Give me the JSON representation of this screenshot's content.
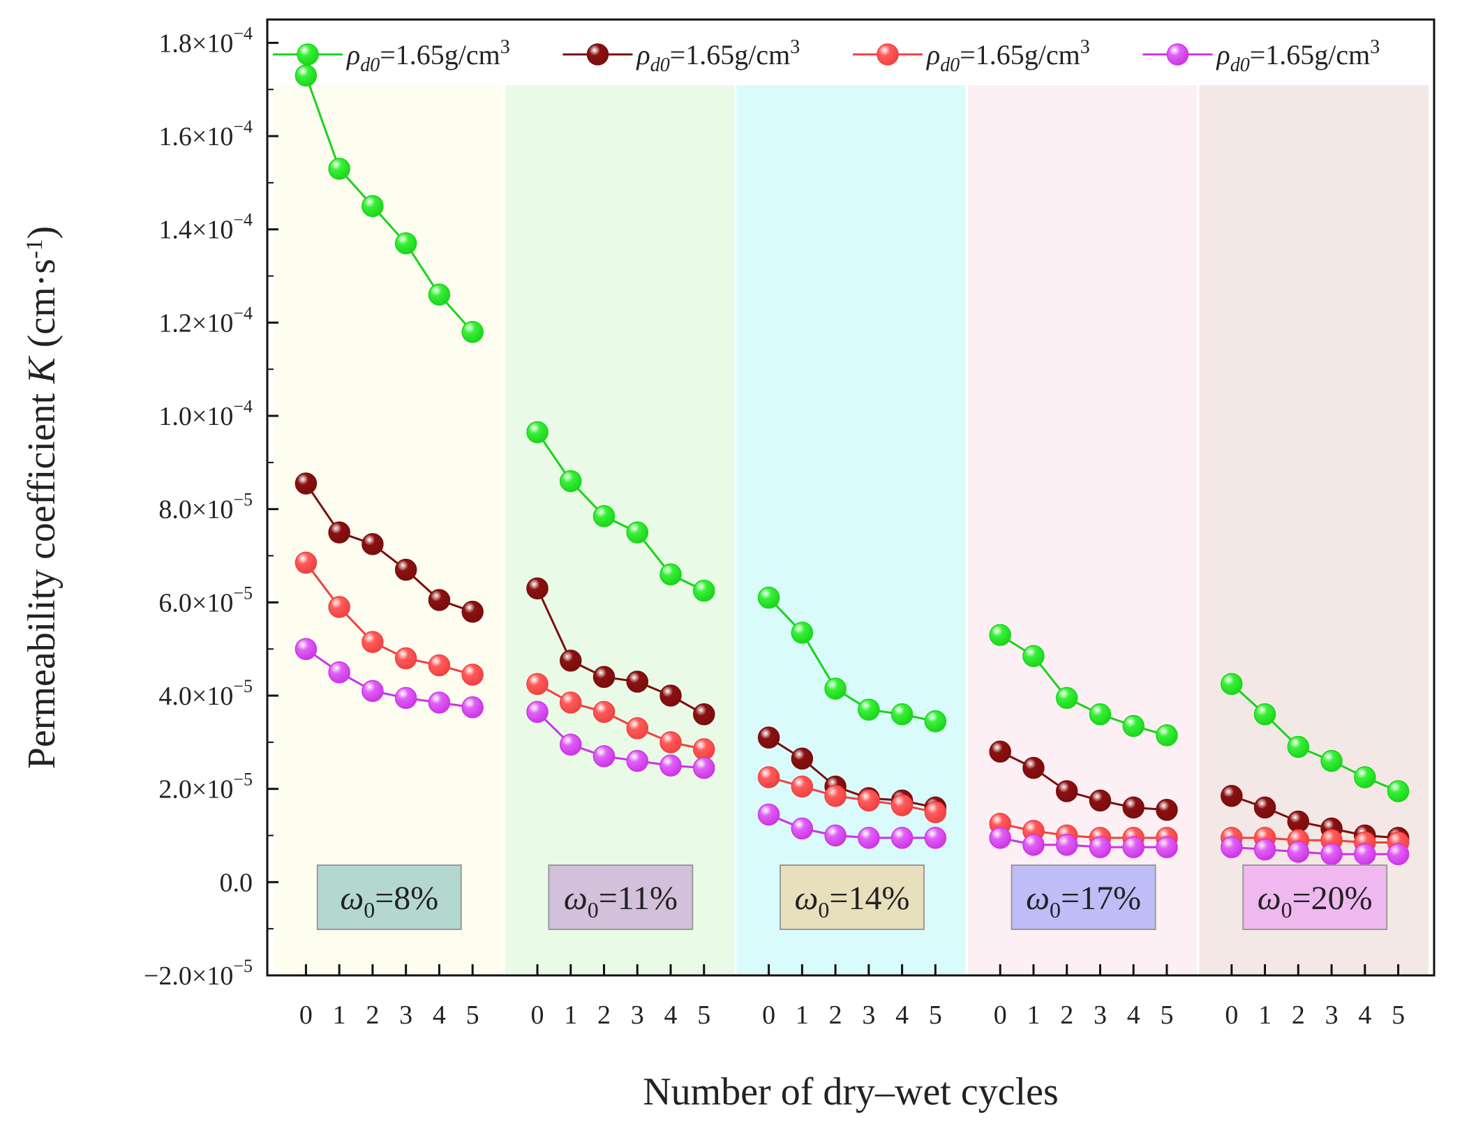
{
  "chart_data": {
    "type": "line",
    "xlabel": "Number of dry–wet cycles",
    "ylabel_parts": {
      "pre": "Permeability coefficient ",
      "italic": "K",
      "unit": " (cm·s",
      "unit_exp": "-1",
      "close": ")"
    },
    "ylim": [
      -2e-05,
      0.000185
    ],
    "yticks": [
      {
        "value": -2e-05,
        "mantissa": "−2.0×10",
        "exp": "−5"
      },
      {
        "value": 0,
        "mantissa": "0.0",
        "exp": ""
      },
      {
        "value": 2e-05,
        "mantissa": "2.0×10",
        "exp": "−5"
      },
      {
        "value": 4e-05,
        "mantissa": "4.0×10",
        "exp": "−5"
      },
      {
        "value": 6e-05,
        "mantissa": "6.0×10",
        "exp": "−5"
      },
      {
        "value": 8e-05,
        "mantissa": "8.0×10",
        "exp": "−5"
      },
      {
        "value": 0.0001,
        "mantissa": "1.0×10",
        "exp": "−4"
      },
      {
        "value": 0.00012,
        "mantissa": "1.2×10",
        "exp": "−4"
      },
      {
        "value": 0.00014,
        "mantissa": "1.4×10",
        "exp": "−4"
      },
      {
        "value": 0.00016,
        "mantissa": "1.6×10",
        "exp": "−4"
      },
      {
        "value": 0.00018,
        "mantissa": "1.8×10",
        "exp": "−4"
      }
    ],
    "cycles": [
      "0",
      "1",
      "2",
      "3",
      "4",
      "5"
    ],
    "groups": [
      {
        "label_sym": "ω",
        "label_sub": "0",
        "label_val": "=8%",
        "bg": "#fdfdf0",
        "box": "#b4d8cf"
      },
      {
        "label_sym": "ω",
        "label_sub": "0",
        "label_val": "=11%",
        "bg": "#e9fae6",
        "box": "#d3c0db"
      },
      {
        "label_sym": "ω",
        "label_sub": "0",
        "label_val": "=14%",
        "bg": "#d9fbfb",
        "box": "#e8dfbc"
      },
      {
        "label_sym": "ω",
        "label_sub": "0",
        "label_val": "=17%",
        "bg": "#fdf0f5",
        "box": "#bfbdf7"
      },
      {
        "label_sym": "ω",
        "label_sub": "0",
        "label_val": "=20%",
        "bg": "#f4e8e6",
        "box": "#efb9ef"
      }
    ],
    "series": [
      {
        "name_sym": "ρ",
        "name_sub": "d0",
        "name_val": "=1.65g/cm",
        "name_exp": "3",
        "color": "#19d419",
        "fill": "#37f037",
        "values": [
          [
            0.000173,
            0.000153,
            0.000145,
            0.000137,
            0.000126,
            0.000118
          ],
          [
            9.65e-05,
            8.6e-05,
            7.85e-05,
            7.5e-05,
            6.6e-05,
            6.25e-05
          ],
          [
            6.1e-05,
            5.35e-05,
            4.15e-05,
            3.7e-05,
            3.6e-05,
            3.45e-05
          ],
          [
            5.3e-05,
            4.85e-05,
            3.95e-05,
            3.6e-05,
            3.35e-05,
            3.15e-05
          ],
          [
            4.25e-05,
            3.6e-05,
            2.9e-05,
            2.6e-05,
            2.25e-05,
            1.95e-05
          ]
        ]
      },
      {
        "name_sym": "ρ",
        "name_sub": "d0",
        "name_val": "=1.65g/cm",
        "name_exp": "3",
        "color": "#7a0d0d",
        "fill": "#8a1010",
        "values": [
          [
            8.55e-05,
            7.5e-05,
            7.25e-05,
            6.7e-05,
            6.05e-05,
            5.8e-05
          ],
          [
            6.3e-05,
            4.75e-05,
            4.4e-05,
            4.3e-05,
            4e-05,
            3.6e-05
          ],
          [
            3.1e-05,
            2.65e-05,
            2.05e-05,
            1.8e-05,
            1.75e-05,
            1.6e-05
          ],
          [
            2.8e-05,
            2.45e-05,
            1.95e-05,
            1.75e-05,
            1.6e-05,
            1.55e-05
          ],
          [
            1.85e-05,
            1.6e-05,
            1.3e-05,
            1.15e-05,
            1e-05,
            9.5e-06
          ]
        ]
      },
      {
        "name_sym": "ρ",
        "name_sub": "d0",
        "name_val": "=1.65g/cm",
        "name_exp": "3",
        "color": "#f04040",
        "fill": "#ff5a5a",
        "values": [
          [
            6.85e-05,
            5.9e-05,
            5.15e-05,
            4.8e-05,
            4.65e-05,
            4.45e-05
          ],
          [
            4.25e-05,
            3.85e-05,
            3.65e-05,
            3.3e-05,
            3e-05,
            2.85e-05
          ],
          [
            2.25e-05,
            2.05e-05,
            1.85e-05,
            1.75e-05,
            1.65e-05,
            1.5e-05
          ],
          [
            1.25e-05,
            1.1e-05,
            1e-05,
            9.5e-06,
            9.5e-06,
            9.5e-06
          ],
          [
            9.5e-06,
            9.5e-06,
            9e-06,
            9e-06,
            8.5e-06,
            8.5e-06
          ]
        ]
      },
      {
        "name_sym": "ρ",
        "name_sub": "d0",
        "name_val": "=1.65g/cm",
        "name_exp": "3",
        "color": "#cc33e6",
        "fill": "#e060f5",
        "values": [
          [
            5e-05,
            4.5e-05,
            4.1e-05,
            3.95e-05,
            3.85e-05,
            3.75e-05
          ],
          [
            3.65e-05,
            2.95e-05,
            2.7e-05,
            2.6e-05,
            2.5e-05,
            2.45e-05
          ],
          [
            1.45e-05,
            1.15e-05,
            1e-05,
            9.5e-06,
            9.5e-06,
            9.5e-06
          ],
          [
            9.5e-06,
            8e-06,
            8e-06,
            7.5e-06,
            7.5e-06,
            7.5e-06
          ],
          [
            7.5e-06,
            7e-06,
            6.5e-06,
            6e-06,
            6e-06,
            6e-06
          ]
        ]
      }
    ]
  }
}
